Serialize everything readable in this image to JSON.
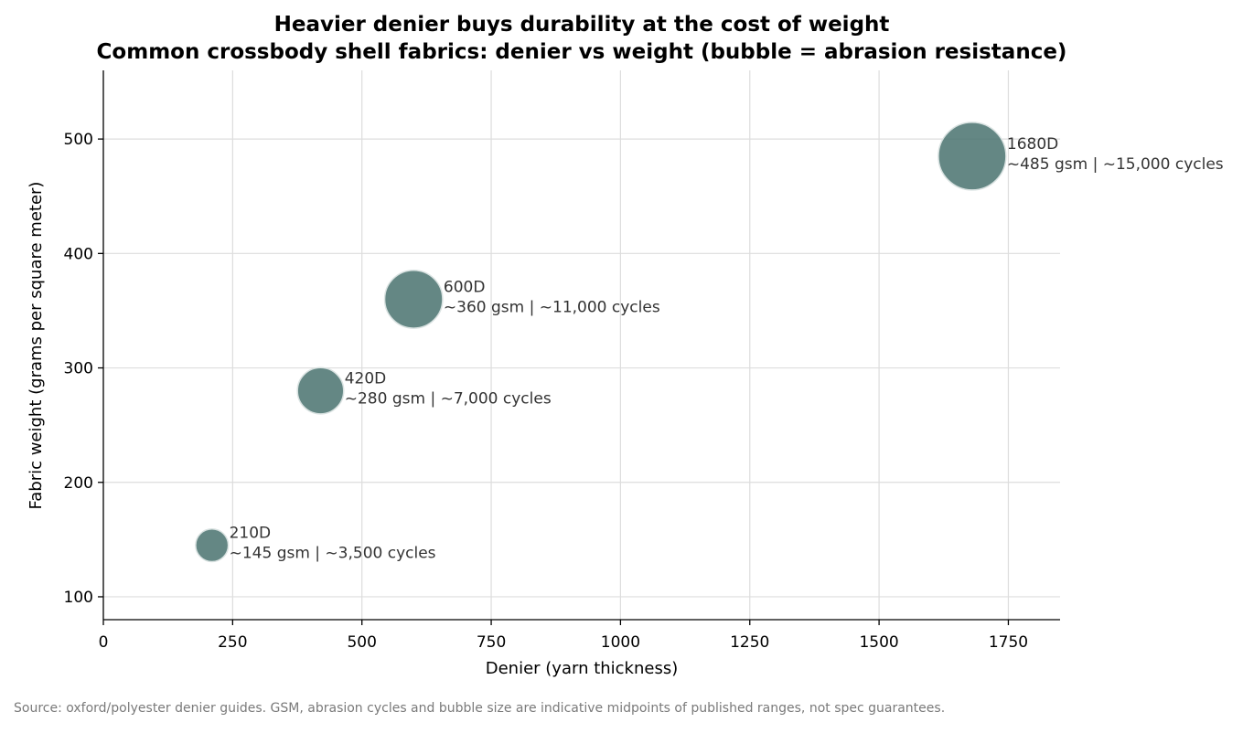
{
  "chart_data": {
    "type": "scatter",
    "title": "Heavier denier buys durability at the cost of weight",
    "subtitle": "Common crossbody shell fabrics: denier vs weight (bubble = abrasion resistance)",
    "xlabel": "Denier (yarn thickness)",
    "ylabel": "Fabric weight (grams per square meter)",
    "xlim": [
      0,
      1850
    ],
    "ylim": [
      80,
      560
    ],
    "x_ticks": [
      0,
      250,
      500,
      750,
      1000,
      1250,
      1500,
      1750
    ],
    "y_ticks": [
      100,
      200,
      300,
      400,
      500
    ],
    "grid": true,
    "bubble_color": "#4f7673",
    "bubble_edge_color": "#d9e2e1",
    "points": [
      {
        "label": "210D",
        "x": 210,
        "y": 145,
        "abrasion_cycles": 3500,
        "detail": "~145 gsm | ~3,500 cycles"
      },
      {
        "label": "420D",
        "x": 420,
        "y": 280,
        "abrasion_cycles": 7000,
        "detail": "~280 gsm | ~7,000 cycles"
      },
      {
        "label": "600D",
        "x": 600,
        "y": 360,
        "abrasion_cycles": 11000,
        "detail": "~360 gsm | ~11,000 cycles"
      },
      {
        "label": "1680D",
        "x": 1680,
        "y": 485,
        "abrasion_cycles": 15000,
        "detail": "~485 gsm | ~15,000 cycles"
      }
    ]
  },
  "footnote": "Source: oxford/polyester denier guides. GSM, abrasion cycles and bubble size are indicative midpoints of published ranges, not spec guarantees."
}
